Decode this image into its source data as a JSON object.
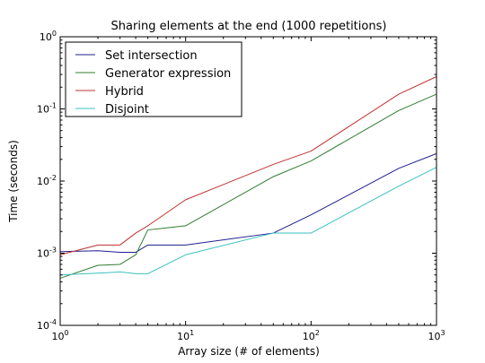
{
  "chart_data": {
    "type": "line",
    "title": "Sharing elements at the end (1000 repetitions)",
    "xlabel": "Array size (# of elements)",
    "ylabel": "Time (seconds)",
    "xscale": "log",
    "yscale": "log",
    "xlim": [
      1,
      1000
    ],
    "ylim": [
      0.0001,
      1
    ],
    "x_ticks": [
      {
        "value": 1,
        "base": "10",
        "exp": "0"
      },
      {
        "value": 10,
        "base": "10",
        "exp": "1"
      },
      {
        "value": 100,
        "base": "10",
        "exp": "2"
      },
      {
        "value": 1000,
        "base": "10",
        "exp": "3"
      }
    ],
    "y_ticks": [
      {
        "value": 0.0001,
        "base": "10",
        "exp": "-4"
      },
      {
        "value": 0.001,
        "base": "10",
        "exp": "-3"
      },
      {
        "value": 0.01,
        "base": "10",
        "exp": "-2"
      },
      {
        "value": 0.1,
        "base": "10",
        "exp": "-1"
      },
      {
        "value": 1,
        "base": "10",
        "exp": "0"
      }
    ],
    "grid": false,
    "legend_position": "top-left",
    "series": [
      {
        "name": "Set intersection",
        "color": "#1f1f8f",
        "points": [
          [
            1,
            0.00105
          ],
          [
            2,
            0.00108
          ],
          [
            3,
            0.00103
          ],
          [
            4,
            0.00103
          ],
          [
            5,
            0.0013
          ],
          [
            10,
            0.0013
          ],
          [
            50,
            0.0019
          ],
          [
            100,
            0.0034
          ],
          [
            500,
            0.015
          ],
          [
            1000,
            0.024
          ]
        ]
      },
      {
        "name": "Generator expression",
        "color": "#2e7d2e",
        "points": [
          [
            1,
            0.00045
          ],
          [
            2,
            0.00068
          ],
          [
            3,
            0.0007
          ],
          [
            4,
            0.00095
          ],
          [
            5,
            0.0021
          ],
          [
            10,
            0.0024
          ],
          [
            50,
            0.0115
          ],
          [
            100,
            0.019
          ],
          [
            500,
            0.095
          ],
          [
            1000,
            0.16
          ]
        ]
      },
      {
        "name": "Hybrid",
        "color": "#c03030",
        "points": [
          [
            1,
            0.00095
          ],
          [
            2,
            0.0013
          ],
          [
            3,
            0.0013
          ],
          [
            4,
            0.0019
          ],
          [
            5,
            0.0024
          ],
          [
            10,
            0.0055
          ],
          [
            50,
            0.017
          ],
          [
            100,
            0.026
          ],
          [
            500,
            0.16
          ],
          [
            1000,
            0.28
          ]
        ]
      },
      {
        "name": "Disjoint",
        "color": "#3cc0c0",
        "points": [
          [
            1,
            0.0005
          ],
          [
            2,
            0.00053
          ],
          [
            3,
            0.00055
          ],
          [
            4,
            0.00052
          ],
          [
            5,
            0.00052
          ],
          [
            10,
            0.00095
          ],
          [
            50,
            0.0019
          ],
          [
            100,
            0.0019
          ],
          [
            500,
            0.0085
          ],
          [
            1000,
            0.0155
          ]
        ]
      }
    ]
  }
}
